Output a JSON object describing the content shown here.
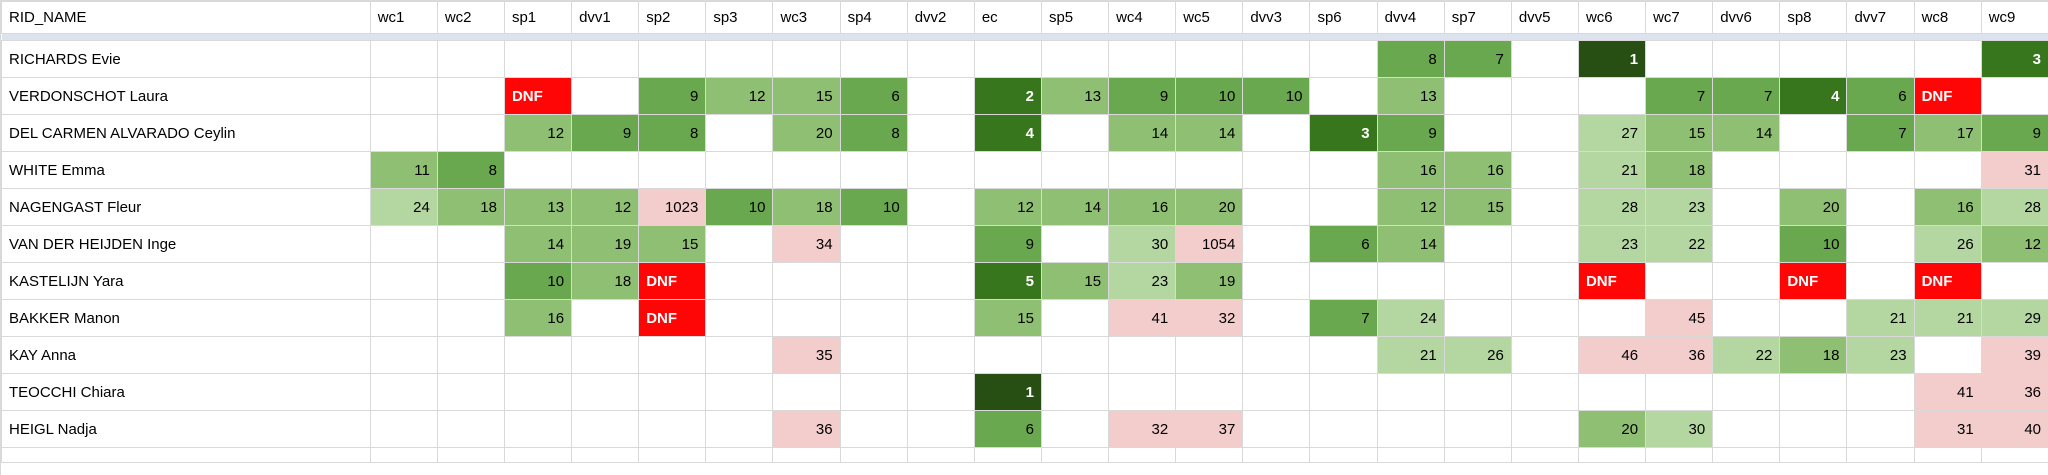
{
  "table": {
    "name_header": "RID_NAME",
    "columns": [
      "wc1",
      "wc2",
      "sp1",
      "dvv1",
      "sp2",
      "sp3",
      "wc3",
      "sp4",
      "dvv2",
      "ec",
      "sp5",
      "wc4",
      "wc5",
      "dvv3",
      "sp6",
      "dvv4",
      "sp7",
      "dvv5",
      "wc6",
      "wc7",
      "dvv6",
      "sp8",
      "dvv7",
      "wc8",
      "wc9"
    ],
    "dnf_label": "DNF",
    "rows": [
      {
        "name": "RICHARDS Evie",
        "results": {
          "dvv4": "8",
          "sp7": "7",
          "wc6": "1",
          "wc9": "3"
        }
      },
      {
        "name": "VERDONSCHOT Laura",
        "results": {
          "sp1": "DNF",
          "sp2": "9",
          "sp3": "12",
          "wc3": "15",
          "sp4": "6",
          "ec": "2",
          "sp5": "13",
          "wc4": "9",
          "wc5": "10",
          "dvv3": "10",
          "dvv4": "13",
          "wc7": "7",
          "dvv6": "7",
          "sp8": "4",
          "dvv7": "6",
          "wc8": "DNF"
        }
      },
      {
        "name": "DEL CARMEN ALVARADO Ceylin",
        "results": {
          "sp1": "12",
          "dvv1": "9",
          "sp2": "8",
          "wc3": "20",
          "sp4": "8",
          "ec": "4",
          "wc4": "14",
          "wc5": "14",
          "sp6": "3",
          "dvv4": "9",
          "wc6": "27",
          "wc7": "15",
          "dvv6": "14",
          "dvv7": "7",
          "wc8": "17",
          "wc9": "9"
        }
      },
      {
        "name": "WHITE Emma",
        "results": {
          "wc1": "11",
          "wc2": "8",
          "dvv4": "16",
          "sp7": "16",
          "wc6": "21",
          "wc7": "18",
          "wc9": "31"
        }
      },
      {
        "name": "NAGENGAST Fleur",
        "results": {
          "wc1": "24",
          "wc2": "18",
          "sp1": "13",
          "dvv1": "12",
          "sp2": "1023",
          "sp3": "10",
          "wc3": "18",
          "sp4": "10",
          "ec": "12",
          "sp5": "14",
          "wc4": "16",
          "wc5": "20",
          "dvv4": "12",
          "sp7": "15",
          "wc6": "28",
          "wc7": "23",
          "sp8": "20",
          "wc8": "16",
          "wc9": "28"
        }
      },
      {
        "name": "VAN DER HEIJDEN Inge",
        "results": {
          "sp1": "14",
          "dvv1": "19",
          "sp2": "15",
          "wc3": "34",
          "ec": "9",
          "wc4": "30",
          "wc5": "1054",
          "sp6": "6",
          "dvv4": "14",
          "wc6": "23",
          "wc7": "22",
          "sp8": "10",
          "wc8": "26",
          "wc9": "12"
        }
      },
      {
        "name": "KASTELIJN Yara",
        "results": {
          "sp1": "10",
          "dvv1": "18",
          "sp2": "DNF",
          "ec": "5",
          "sp5": "15",
          "wc4": "23",
          "wc5": "19",
          "wc6": "DNF",
          "sp8": "DNF",
          "wc8": "DNF"
        }
      },
      {
        "name": "BAKKER Manon",
        "results": {
          "sp1": "16",
          "sp2": "DNF",
          "ec": "15",
          "wc4": "41",
          "wc5": "32",
          "sp6": "7",
          "dvv4": "24",
          "wc7": "45",
          "dvv7": "21",
          "wc8": "21",
          "wc9": "29"
        }
      },
      {
        "name": "KAY Anna",
        "results": {
          "wc3": "35",
          "dvv4": "21",
          "sp7": "26",
          "wc6": "46",
          "wc7": "36",
          "dvv6": "22",
          "sp8": "18",
          "dvv7": "23",
          "wc9": "39"
        }
      },
      {
        "name": "TEOCCHI Chiara",
        "results": {
          "ec": "1",
          "wc8": "41",
          "wc9": "36"
        }
      },
      {
        "name": "HEIGL Nadja",
        "results": {
          "wc3": "36",
          "ec": "6",
          "wc4": "32",
          "wc5": "37",
          "wc6": "20",
          "wc7": "30",
          "wc8": "31",
          "wc9": "40"
        }
      }
    ]
  },
  "colors": {
    "rank1_green": "#274e13",
    "rank2to5_green": "#38761d",
    "rank6to10_green": "#6aa84f",
    "rank11to20_green": "#8fbf72",
    "rank21to30_green": "#b4d6a1",
    "over30_pink": "#f3cccc",
    "dnf_red": "#fe0606",
    "gridline": "#d9d9d9",
    "frozen_band": "#dce3ee"
  }
}
